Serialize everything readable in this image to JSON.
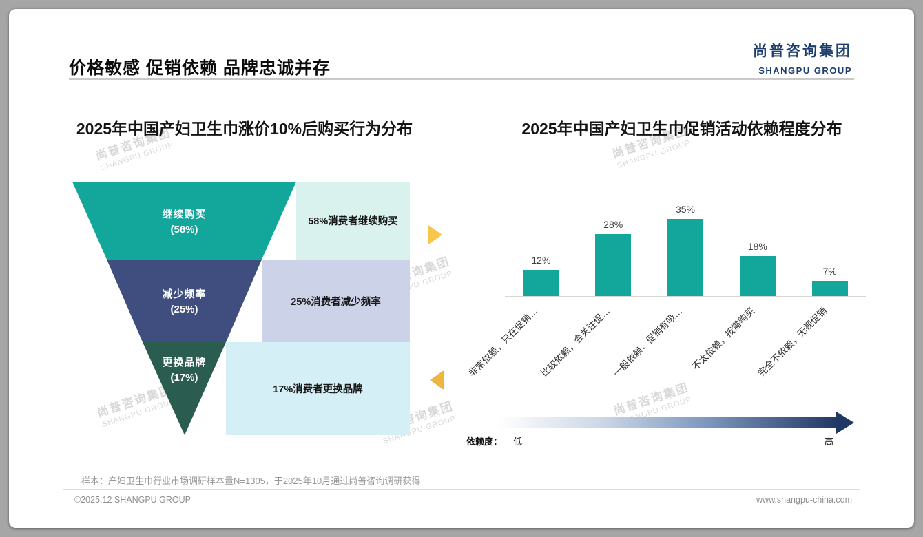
{
  "slide": {
    "title": "价格敏感 促销依赖 品牌忠诚并存",
    "logo_cn": "尚普咨询集团",
    "logo_en": "SHANGPU GROUP",
    "watermark_cn": "尚普咨询集团",
    "watermark_en": "SHANGPU GROUP",
    "footnote": "样本：产妇卫生巾行业市场调研样本量N=1305，于2025年10月通过尚普咨询调研获得",
    "footer_left": "©2025.12 SHANGPU GROUP",
    "footer_right": "www.shangpu-china.com",
    "accents": {
      "arrow_top": "#f7c64a",
      "arrow_bottom": "#efb53f",
      "logo_color": "#1c3d6e"
    }
  },
  "chart_data": [
    {
      "type": "funnel",
      "title": "2025年中国产妇卫生巾涨价10%后购买行为分布",
      "steps": [
        {
          "stage": "继续购买",
          "value": 58,
          "value_label": "(58%)",
          "annotation": "58%消费者继续购买",
          "color": "#12a79a",
          "annotation_bg": "#d9f2ee"
        },
        {
          "stage": "减少频率",
          "value": 25,
          "value_label": "(25%)",
          "annotation": "25%消费者减少频率",
          "color": "#3f4e7e",
          "annotation_bg": "#ccd3e9"
        },
        {
          "stage": "更换品牌",
          "value": 17,
          "value_label": "(17%)",
          "annotation": "17%消费者更换品牌",
          "color": "#2a5c4f",
          "annotation_bg": "#d5eff7"
        }
      ]
    },
    {
      "type": "bar",
      "title": "2025年中国产妇卫生巾促销活动依赖程度分布",
      "categories": [
        "非常依赖，只在促销…",
        "比较依赖，会关注促…",
        "一般依赖，促销有吸…",
        "不太依赖，按需购买",
        "完全不依赖，无视促销"
      ],
      "values": [
        12,
        28,
        35,
        18,
        7
      ],
      "value_labels": [
        "12%",
        "28%",
        "35%",
        "18%",
        "7%"
      ],
      "bar_color": "#12a79a",
      "ylim": [
        0,
        40
      ],
      "grid": false,
      "legend_axis": {
        "label": "依赖度：",
        "low": "低",
        "high": "高",
        "gradient_from": "#ffffff",
        "gradient_to": "#1f3864"
      }
    }
  ]
}
